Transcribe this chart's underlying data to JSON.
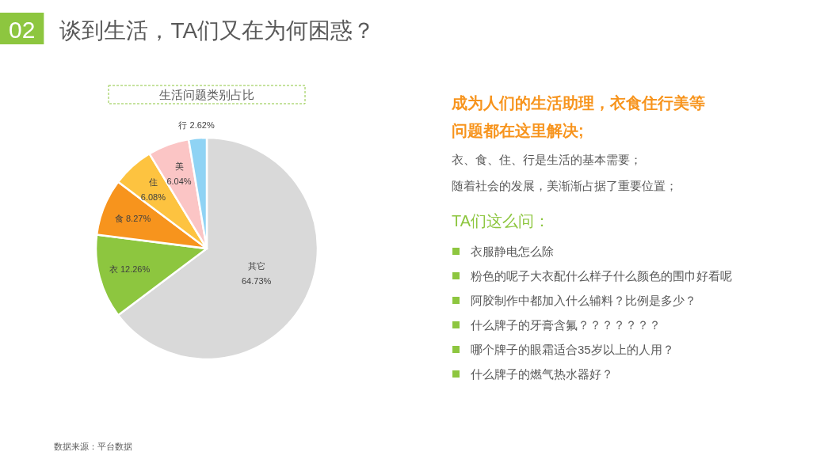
{
  "chart_data": [
    {
      "type": "other",
      "title": "谈到生活，TA们又在为何困惑？",
      "annotations": [
        "02"
      ]
    },
    {
      "type": "pie",
      "title": "生活问题类别占比",
      "categories": [
        "其它",
        "衣",
        "食",
        "住",
        "美",
        "行"
      ],
      "values": [
        64.73,
        12.26,
        8.27,
        6.08,
        6.04,
        2.62
      ],
      "colors": [
        "#d9d9d9",
        "#8dc63f",
        "#f7941d",
        "#fdc340",
        "#fbc5c5",
        "#8fd3f4"
      ],
      "value_labels": [
        "64.73%",
        "12.26%",
        "8.27%",
        "6.08%",
        "6.04%",
        "2.62%"
      ],
      "annotations": [
        "数据来源：平台数据"
      ]
    },
    {
      "type": "other",
      "title": "成为人们的生活助理，衣食住行美等问题都在这里解决;",
      "annotations": [
        "衣、食、住、行是生活的基本需要；",
        "随着社会的发展，美渐渐占据了重要位置；"
      ]
    },
    {
      "type": "other",
      "title": "TA们这么问：",
      "annotations": [
        "衣服静电怎么除",
        "粉色的呢子大衣配什么样子什么颜色的围巾好看呢",
        "阿胶制作中都加入什么辅料？比例是多少？",
        "什么牌子的牙膏含氟？？？？？？？",
        "哪个牌子的眼霜适合35岁以上的人用？",
        "什么牌子的燃气热水器好？"
      ]
    }
  ]
}
